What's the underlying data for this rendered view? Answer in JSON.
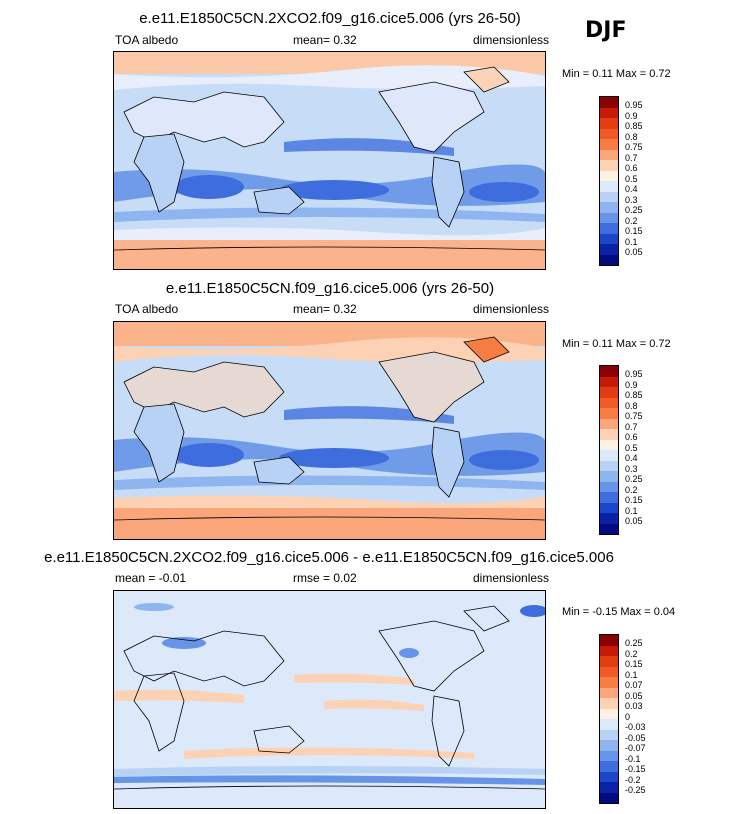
{
  "season": "DJF",
  "panels": [
    {
      "title": "e.e11.E1850C5CN.2XCO2.f09_g16.cice5.006 (yrs 26-50)",
      "left_label": "TOA albedo",
      "center_label": "mean=  0.32",
      "right_label": "dimensionless",
      "minmax": "Min =  0.11 Max =  0.72",
      "levels": [
        "0.95",
        "0.9",
        "0.85",
        "0.8",
        "0.75",
        "0.7",
        "0.6",
        "0.5",
        "0.4",
        "0.3",
        "0.25",
        "0.2",
        "0.15",
        "0.1",
        "0.05"
      ],
      "colors": [
        "#8b0000",
        "#c41a06",
        "#e23d12",
        "#f15a25",
        "#f77d45",
        "#fba67a",
        "#fdd1b4",
        "#fff0e5",
        "#dce9fb",
        "#b8d2f6",
        "#8fb5f0",
        "#6694e8",
        "#3e6ddd",
        "#1c46c9",
        "#0a22a6",
        "#000c80"
      ]
    },
    {
      "title": "e.e11.E1850C5CN.f09_g16.cice5.006 (yrs 26-50)",
      "left_label": "TOA albedo",
      "center_label": "mean=  0.32",
      "right_label": "dimensionless",
      "minmax": "Min =  0.11 Max =  0.72",
      "levels": [
        "0.95",
        "0.9",
        "0.85",
        "0.8",
        "0.75",
        "0.7",
        "0.6",
        "0.5",
        "0.4",
        "0.3",
        "0.25",
        "0.2",
        "0.15",
        "0.1",
        "0.05"
      ],
      "colors": [
        "#8b0000",
        "#c41a06",
        "#e23d12",
        "#f15a25",
        "#f77d45",
        "#fba67a",
        "#fdd1b4",
        "#fff0e5",
        "#dce9fb",
        "#b8d2f6",
        "#8fb5f0",
        "#6694e8",
        "#3e6ddd",
        "#1c46c9",
        "#0a22a6",
        "#000c80"
      ]
    },
    {
      "title": "e.e11.E1850C5CN.2XCO2.f09_g16.cice5.006 - e.e11.E1850C5CN.f09_g16.cice5.006",
      "left_label": "mean =  -0.01",
      "center_label": "rmse =  0.02",
      "right_label": "dimensionless",
      "minmax": "Min =  -0.15 Max =  0.04",
      "levels": [
        "0.25",
        "0.2",
        "0.15",
        "0.1",
        "0.07",
        "0.05",
        "0.03",
        "0",
        "-0.03",
        "-0.05",
        "-0.07",
        "-0.1",
        "-0.15",
        "-0.2",
        "-0.25"
      ],
      "colors": [
        "#8b0000",
        "#c41a06",
        "#e23d12",
        "#f15a25",
        "#f77d45",
        "#fba67a",
        "#fdd1b4",
        "#fff0e5",
        "#dce9fb",
        "#b8d2f6",
        "#8fb5f0",
        "#6694e8",
        "#3e6ddd",
        "#1c46c9",
        "#0a22a6",
        "#000c80"
      ]
    }
  ]
}
